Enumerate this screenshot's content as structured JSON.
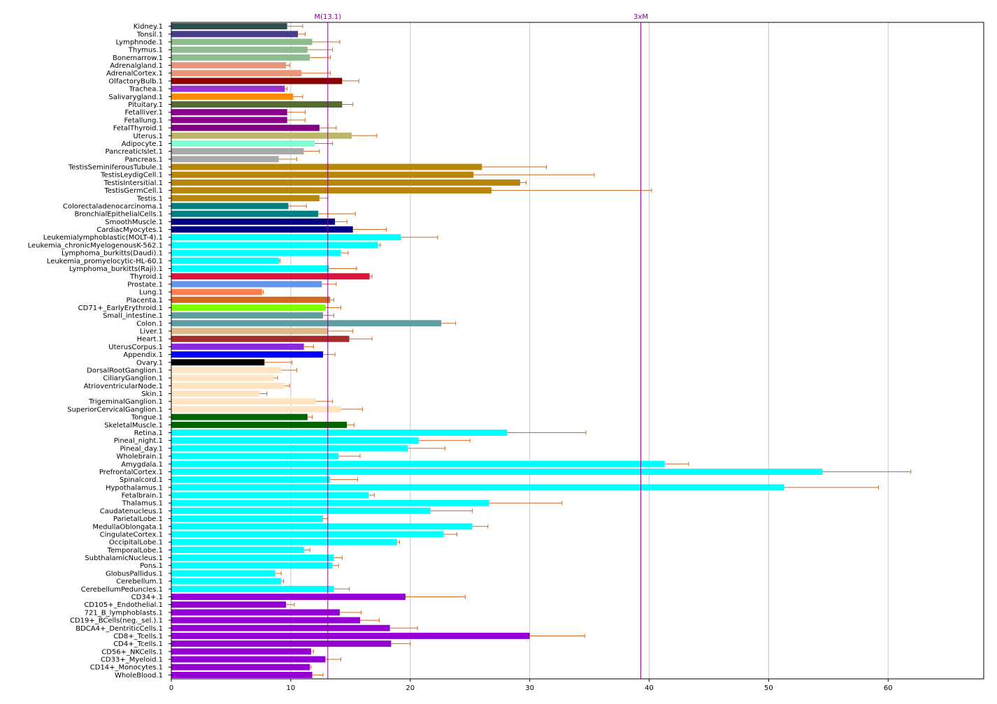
{
  "chart_data": {
    "type": "bar",
    "orientation": "horizontal",
    "xlim": [
      0,
      68
    ],
    "x_ticks": [
      0,
      10,
      20,
      30,
      40,
      50,
      60
    ],
    "grid": "vertical",
    "reference_lines": [
      {
        "label": "M(13.1)",
        "value": 13.1,
        "color": "#8b008b"
      },
      {
        "label": "3xM",
        "value": 39.3,
        "color": "#8b008b"
      }
    ],
    "error_color": "#d2691e",
    "categories": [
      {
        "label": "Kidney.1",
        "value": 9.7,
        "error": 1.3,
        "color": "#2f4f4f"
      },
      {
        "label": "Tonsil.1",
        "value": 10.6,
        "error": 0.6,
        "color": "#483d8b"
      },
      {
        "label": "Lymphnode.1",
        "value": 11.8,
        "error": 2.3,
        "color": "#8fbc8f"
      },
      {
        "label": "Thymus.1",
        "value": 11.4,
        "error": 2.1,
        "color": "#8fbc8f"
      },
      {
        "label": "Bonemarrow.1",
        "value": 11.6,
        "error": 1.7,
        "color": "#8fbc8f"
      },
      {
        "label": "Adrenalgland.1",
        "value": 9.6,
        "error": 0.3,
        "color": "#e9967a"
      },
      {
        "label": "AdrenalCortex.1",
        "value": 10.9,
        "error": 2.4,
        "color": "#e9967a"
      },
      {
        "label": "OlfactoryBulb.1",
        "value": 14.3,
        "error": 1.4,
        "color": "#8b0000"
      },
      {
        "label": "Trachea.1",
        "value": 9.5,
        "error": 0.2,
        "color": "#9932cc"
      },
      {
        "label": "Salivarygland.1",
        "value": 10.2,
        "error": 0.8,
        "color": "#ff8c00"
      },
      {
        "label": "Pituitary.1",
        "value": 14.3,
        "error": 0.9,
        "color": "#556b2f"
      },
      {
        "label": "Fetalliver.1",
        "value": 9.7,
        "error": 1.5,
        "color": "#8b008b"
      },
      {
        "label": "Fetallung.1",
        "value": 9.7,
        "error": 1.5,
        "color": "#8b008b"
      },
      {
        "label": "FetalThyroid.1",
        "value": 12.4,
        "error": 1.4,
        "color": "#800080"
      },
      {
        "label": "Uterus.1",
        "value": 15.1,
        "error": 2.1,
        "color": "#bdb76b"
      },
      {
        "label": "Adipocyte.1",
        "value": 12.0,
        "error": 1.5,
        "color": "#7fffd4"
      },
      {
        "label": "PancreaticIslet.1",
        "value": 11.1,
        "error": 1.3,
        "color": "#a9a9a9"
      },
      {
        "label": "Pancreas.1",
        "value": 9.0,
        "error": 1.5,
        "color": "#a9a9a9"
      },
      {
        "label": "TestisSeminiferousTubule.1",
        "value": 26.0,
        "error": 5.4,
        "color": "#b8860b"
      },
      {
        "label": "TestisLeydigCell.1",
        "value": 25.3,
        "error": 10.1,
        "color": "#b8860b"
      },
      {
        "label": "TestisIntersitial.1",
        "value": 29.2,
        "error": 0.5,
        "color": "#b8860b"
      },
      {
        "label": "TestisGermCell.1",
        "value": 26.8,
        "error": 13.4,
        "color": "#b8860b"
      },
      {
        "label": "Testis.1",
        "value": 12.4,
        "error": 0.7,
        "color": "#b8860b"
      },
      {
        "label": "Colorectaladenocarcinoma.1",
        "value": 9.8,
        "error": 1.5,
        "color": "#008080"
      },
      {
        "label": "BronchialEpithelialCells.1",
        "value": 12.3,
        "error": 3.1,
        "color": "#008080"
      },
      {
        "label": "SmoothMuscle.1",
        "value": 13.7,
        "error": 1.0,
        "color": "#000080"
      },
      {
        "label": "CardiacMyocytes.1",
        "value": 15.2,
        "error": 2.8,
        "color": "#000080"
      },
      {
        "label": "Leukemialymphoblastic(MOLT-4).1",
        "value": 19.2,
        "error": 3.1,
        "color": "#00ffff"
      },
      {
        "label": "Leukemia_chronicMyelogenousK-562.1",
        "value": 17.3,
        "error": 0.2,
        "color": "#00ffff"
      },
      {
        "label": "Lymphoma_burkitts(Daudi).1",
        "value": 14.2,
        "error": 0.6,
        "color": "#00ffff"
      },
      {
        "label": "Leukemia_promyelocytic-HL-60.1",
        "value": 9.0,
        "error": 0.1,
        "color": "#00ffff"
      },
      {
        "label": "Lymphoma_burkitts(Raji).1",
        "value": 13.2,
        "error": 2.3,
        "color": "#00ffff"
      },
      {
        "label": "Thyroid.1",
        "value": 16.6,
        "error": 0.2,
        "color": "#dc143c"
      },
      {
        "label": "Prostate.1",
        "value": 12.6,
        "error": 1.2,
        "color": "#6495ed"
      },
      {
        "label": "Lung.1",
        "value": 7.6,
        "error": 0.1,
        "color": "#ff7f50"
      },
      {
        "label": "Placenta.1",
        "value": 13.3,
        "error": 0.3,
        "color": "#d2691e"
      },
      {
        "label": "CD71+_EarlyErythroid.1",
        "value": 12.9,
        "error": 1.3,
        "color": "#7fff00"
      },
      {
        "label": "Small_intestine.1",
        "value": 12.7,
        "error": 0.9,
        "color": "#5f9ea0"
      },
      {
        "label": "Colon.1",
        "value": 22.6,
        "error": 1.2,
        "color": "#5f9ea0"
      },
      {
        "label": "Liver.1",
        "value": 13.1,
        "error": 2.1,
        "color": "#deb887"
      },
      {
        "label": "Heart.1",
        "value": 14.9,
        "error": 1.9,
        "color": "#a52a2a"
      },
      {
        "label": "UterusCorpus.1",
        "value": 11.1,
        "error": 0.8,
        "color": "#8a2be2"
      },
      {
        "label": "Appendix.1",
        "value": 12.7,
        "error": 1.0,
        "color": "#0000ff"
      },
      {
        "label": "Ovary.1",
        "value": 7.8,
        "error": 2.3,
        "color": "#000000"
      },
      {
        "label": "DorsalRootGanglion.1",
        "value": 9.2,
        "error": 1.3,
        "color": "#ffe4c4"
      },
      {
        "label": "CiliaryGanglion.1",
        "value": 8.6,
        "error": 0.3,
        "color": "#ffe4c4"
      },
      {
        "label": "AtrioventricularNode.1",
        "value": 9.5,
        "error": 0.4,
        "color": "#ffe4c4"
      },
      {
        "label": "Skin.1",
        "value": 7.4,
        "error": 0.6,
        "color": "#ffe4c4"
      },
      {
        "label": "TrigeminalGanglion.1",
        "value": 12.1,
        "error": 1.4,
        "color": "#ffe4c4"
      },
      {
        "label": "SuperiorCervicalGanglion.1",
        "value": 14.2,
        "error": 1.8,
        "color": "#ffe4c4"
      },
      {
        "label": "Tongue.1",
        "value": 11.4,
        "error": 0.4,
        "color": "#006400"
      },
      {
        "label": "SkeletalMuscle.1",
        "value": 14.7,
        "error": 0.6,
        "color": "#006400"
      },
      {
        "label": "Retina.1",
        "value": 28.1,
        "error": 6.6,
        "color": "#00ffff"
      },
      {
        "label": "Pineal_night.1",
        "value": 20.7,
        "error": 4.3,
        "color": "#00ffff"
      },
      {
        "label": "Pineal_day.1",
        "value": 19.8,
        "error": 3.1,
        "color": "#00ffff"
      },
      {
        "label": "Wholebrain.1",
        "value": 14.0,
        "error": 1.8,
        "color": "#00ffff"
      },
      {
        "label": "Amygdala.1",
        "value": 41.3,
        "error": 2.0,
        "color": "#00ffff"
      },
      {
        "label": "PrefrontalCortex.1",
        "value": 54.5,
        "error": 7.4,
        "color": "#00ffff"
      },
      {
        "label": "Spinalcord.1",
        "value": 13.3,
        "error": 2.3,
        "color": "#00ffff"
      },
      {
        "label": "Hypothalamus.1",
        "value": 51.3,
        "error": 7.9,
        "color": "#00ffff"
      },
      {
        "label": "Fetalbrain.1",
        "value": 16.5,
        "error": 0.5,
        "color": "#00ffff"
      },
      {
        "label": "Thalamus.1",
        "value": 26.6,
        "error": 6.1,
        "color": "#00ffff"
      },
      {
        "label": "Caudatenucleus.1",
        "value": 21.7,
        "error": 3.5,
        "color": "#00ffff"
      },
      {
        "label": "ParietalLobe.1",
        "value": 12.7,
        "error": 0.4,
        "color": "#00ffff"
      },
      {
        "label": "MedullaOblongata.1",
        "value": 25.2,
        "error": 1.3,
        "color": "#00ffff"
      },
      {
        "label": "CingulateCortex.1",
        "value": 22.8,
        "error": 1.1,
        "color": "#00ffff"
      },
      {
        "label": "OccipitalLobe.1",
        "value": 18.9,
        "error": 0.2,
        "color": "#00ffff"
      },
      {
        "label": "TemporalLobe.1",
        "value": 11.1,
        "error": 0.5,
        "color": "#00ffff"
      },
      {
        "label": "SubthalamicNucleus.1",
        "value": 13.6,
        "error": 0.7,
        "color": "#00ffff"
      },
      {
        "label": "Pons.1",
        "value": 13.5,
        "error": 0.5,
        "color": "#00ffff"
      },
      {
        "label": "GlobusPallidus.1",
        "value": 8.7,
        "error": 0.5,
        "color": "#00ffff"
      },
      {
        "label": "Cerebellum.1",
        "value": 9.2,
        "error": 0.2,
        "color": "#00ffff"
      },
      {
        "label": "CerebellumPeduncles.1",
        "value": 13.6,
        "error": 1.3,
        "color": "#00ffff"
      },
      {
        "label": "CD34+.1",
        "value": 19.6,
        "error": 5.0,
        "color": "#9400d3"
      },
      {
        "label": "CD105+_Endothelial.1",
        "value": 9.6,
        "error": 0.7,
        "color": "#9400d3"
      },
      {
        "label": "721_B_lymphoblasts.1",
        "value": 14.1,
        "error": 1.8,
        "color": "#9400d3"
      },
      {
        "label": "CD19+_BCells(neg._sel.).1",
        "value": 15.8,
        "error": 1.6,
        "color": "#9400d3"
      },
      {
        "label": "BDCA4+_DentriticCells.1",
        "value": 18.3,
        "error": 2.3,
        "color": "#9400d3"
      },
      {
        "label": "CD8+_Tcells.1",
        "value": 30.0,
        "error": 4.6,
        "color": "#9400d3"
      },
      {
        "label": "CD4+_Tcells.1",
        "value": 18.4,
        "error": 1.6,
        "color": "#9400d3"
      },
      {
        "label": "CD56+_NKCells.1",
        "value": 11.7,
        "error": 0.2,
        "color": "#9400d3"
      },
      {
        "label": "CD33+_Myeloid.1",
        "value": 12.9,
        "error": 1.3,
        "color": "#9400d3"
      },
      {
        "label": "CD14+_Monocytes.1",
        "value": 11.6,
        "error": 0.1,
        "color": "#9400d3"
      },
      {
        "label": "WholeBlood.1",
        "value": 11.8,
        "error": 0.9,
        "color": "#9400d3"
      }
    ]
  }
}
